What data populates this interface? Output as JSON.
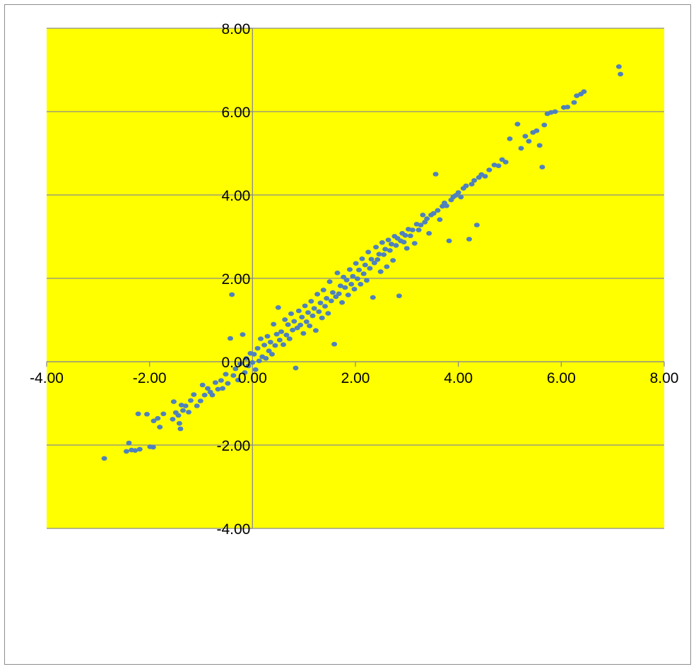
{
  "chart_data": {
    "type": "scatter",
    "title": "",
    "xlabel": "",
    "ylabel": "",
    "xlim": [
      -4,
      8
    ],
    "ylim": [
      -4,
      8
    ],
    "xticks": [
      -4,
      -2,
      0,
      2,
      4,
      6,
      8
    ],
    "yticks": [
      -4,
      -2,
      0,
      2,
      4,
      6,
      8
    ],
    "x_tick_labels": [
      "-4.00",
      "-2.00",
      "0.00",
      "2.00",
      "4.00",
      "6.00",
      "8.00"
    ],
    "y_tick_labels": [
      "-4.00",
      "-2.00",
      "0.00",
      "2.00",
      "4.00",
      "6.00",
      "8.00"
    ],
    "grid": "horizontal major gridlines",
    "plot_background": "#FFFF00",
    "gridline_color": "#8C8C8C",
    "axis_line_color": "#8C8C8C",
    "marker_color": "#4F81BD",
    "series": [
      {
        "points": [
          [
            -2.88,
            -2.32
          ],
          [
            -2.45,
            -2.15
          ],
          [
            -2.4,
            -1.95
          ],
          [
            -2.35,
            -2.12
          ],
          [
            -2.28,
            -2.13
          ],
          [
            -2.22,
            -1.25
          ],
          [
            -2.19,
            -2.1
          ],
          [
            -2.05,
            -1.26
          ],
          [
            -1.99,
            -2.04
          ],
          [
            -1.93,
            -2.05
          ],
          [
            -1.92,
            -1.42
          ],
          [
            -1.84,
            -1.36
          ],
          [
            -1.8,
            -1.57
          ],
          [
            -1.73,
            -1.25
          ],
          [
            -1.55,
            -1.38
          ],
          [
            -1.53,
            -0.96
          ],
          [
            -1.49,
            -1.22
          ],
          [
            -1.44,
            -1.29
          ],
          [
            -1.42,
            -1.48
          ],
          [
            -1.4,
            -1.61
          ],
          [
            -1.38,
            -1.04
          ],
          [
            -1.35,
            -1.17
          ],
          [
            -1.3,
            -1.06
          ],
          [
            -1.24,
            -1.21
          ],
          [
            -1.2,
            -0.93
          ],
          [
            -1.14,
            -0.79
          ],
          [
            -1.08,
            -1.06
          ],
          [
            -1.01,
            -0.94
          ],
          [
            -0.97,
            -0.56
          ],
          [
            -0.93,
            -0.8
          ],
          [
            -0.87,
            -0.64
          ],
          [
            -0.82,
            -0.73
          ],
          [
            -0.78,
            -0.8
          ],
          [
            -0.72,
            -0.5
          ],
          [
            -0.67,
            -0.66
          ],
          [
            -0.61,
            -0.45
          ],
          [
            -0.58,
            -0.64
          ],
          [
            -0.52,
            -0.3
          ],
          [
            -0.48,
            -0.52
          ],
          [
            -0.43,
            0.56
          ],
          [
            -0.4,
            1.61
          ],
          [
            -0.37,
            -0.33
          ],
          [
            -0.33,
            -0.17
          ],
          [
            -0.28,
            -0.44
          ],
          [
            -0.24,
            -0.05
          ],
          [
            -0.19,
            0.65
          ],
          [
            -0.15,
            -0.26
          ],
          [
            -0.12,
            0.08
          ],
          [
            -0.08,
            -0.1
          ],
          [
            -0.04,
            0.2
          ],
          [
            0.0,
            -0.02
          ],
          [
            0.03,
            0.18
          ],
          [
            0.06,
            -0.19
          ],
          [
            0.1,
            0.32
          ],
          [
            0.13,
            0.02
          ],
          [
            0.16,
            0.55
          ],
          [
            0.19,
            0.12
          ],
          [
            0.23,
            0.4
          ],
          [
            0.26,
            0.08
          ],
          [
            0.29,
            0.61
          ],
          [
            0.32,
            0.26
          ],
          [
            0.35,
            0.47
          ],
          [
            0.38,
            0.18
          ],
          [
            0.41,
            0.9
          ],
          [
            0.44,
            0.39
          ],
          [
            0.47,
            0.66
          ],
          [
            0.5,
            1.3
          ],
          [
            0.53,
            0.52
          ],
          [
            0.56,
            0.72
          ],
          [
            0.6,
            0.41
          ],
          [
            0.63,
            1.01
          ],
          [
            0.66,
            0.64
          ],
          [
            0.69,
            0.89
          ],
          [
            0.72,
            0.55
          ],
          [
            0.75,
            1.15
          ],
          [
            0.78,
            0.76
          ],
          [
            0.81,
            0.97
          ],
          [
            0.84,
            -0.15
          ],
          [
            0.87,
            0.81
          ],
          [
            0.9,
            1.22
          ],
          [
            0.93,
            0.88
          ],
          [
            0.96,
            1.07
          ],
          [
            0.99,
            0.68
          ],
          [
            1.02,
            1.34
          ],
          [
            1.05,
            0.96
          ],
          [
            1.08,
            1.18
          ],
          [
            1.11,
            0.86
          ],
          [
            1.14,
            1.45
          ],
          [
            1.17,
            1.1
          ],
          [
            1.2,
            1.28
          ],
          [
            1.23,
            0.75
          ],
          [
            1.26,
            1.62
          ],
          [
            1.29,
            1.2
          ],
          [
            1.32,
            1.41
          ],
          [
            1.35,
            1.05
          ],
          [
            1.38,
            1.72
          ],
          [
            1.41,
            1.33
          ],
          [
            1.44,
            1.52
          ],
          [
            1.47,
            1.16
          ],
          [
            1.5,
            1.92
          ],
          [
            1.53,
            1.46
          ],
          [
            1.56,
            1.66
          ],
          [
            1.59,
            0.42
          ],
          [
            1.62,
            1.56
          ],
          [
            1.65,
            2.13
          ],
          [
            1.68,
            1.63
          ],
          [
            1.71,
            1.82
          ],
          [
            1.74,
            1.42
          ],
          [
            1.77,
            2.03
          ],
          [
            1.8,
            1.78
          ],
          [
            1.83,
            1.96
          ],
          [
            1.86,
            1.6
          ],
          [
            1.89,
            2.21
          ],
          [
            1.92,
            1.86
          ],
          [
            1.95,
            2.05
          ],
          [
            1.98,
            1.74
          ],
          [
            2.01,
            2.36
          ],
          [
            2.04,
            1.99
          ],
          [
            2.07,
            2.2
          ],
          [
            2.1,
            1.86
          ],
          [
            2.13,
            2.47
          ],
          [
            2.16,
            2.11
          ],
          [
            2.19,
            2.32
          ],
          [
            2.22,
            1.95
          ],
          [
            2.25,
            2.63
          ],
          [
            2.28,
            2.24
          ],
          [
            2.31,
            2.46
          ],
          [
            2.34,
            1.54
          ],
          [
            2.37,
            2.37
          ],
          [
            2.4,
            2.75
          ],
          [
            2.43,
            2.45
          ],
          [
            2.46,
            2.58
          ],
          [
            2.49,
            2.16
          ],
          [
            2.52,
            2.86
          ],
          [
            2.55,
            2.57
          ],
          [
            2.58,
            2.7
          ],
          [
            2.61,
            2.28
          ],
          [
            2.64,
            2.92
          ],
          [
            2.67,
            2.67
          ],
          [
            2.7,
            2.82
          ],
          [
            2.73,
            2.43
          ],
          [
            2.76,
            3.01
          ],
          [
            2.79,
            2.79
          ],
          [
            2.82,
            2.96
          ],
          [
            2.85,
            1.58
          ],
          [
            2.88,
            2.9
          ],
          [
            2.91,
            3.08
          ],
          [
            2.94,
            2.87
          ],
          [
            2.97,
            3.03
          ],
          [
            3.0,
            2.72
          ],
          [
            3.03,
            3.18
          ],
          [
            3.07,
            3.02
          ],
          [
            3.11,
            3.16
          ],
          [
            3.15,
            2.84
          ],
          [
            3.19,
            3.3
          ],
          [
            3.23,
            3.16
          ],
          [
            3.27,
            3.28
          ],
          [
            3.31,
            3.52
          ],
          [
            3.35,
            3.35
          ],
          [
            3.39,
            3.43
          ],
          [
            3.43,
            3.08
          ],
          [
            3.47,
            3.52
          ],
          [
            3.52,
            3.56
          ],
          [
            3.56,
            4.5
          ],
          [
            3.6,
            3.63
          ],
          [
            3.64,
            3.41
          ],
          [
            3.69,
            3.73
          ],
          [
            3.73,
            3.81
          ],
          [
            3.77,
            3.74
          ],
          [
            3.82,
            2.9
          ],
          [
            3.86,
            3.88
          ],
          [
            3.9,
            3.95
          ],
          [
            3.95,
            3.99
          ],
          [
            4.0,
            4.06
          ],
          [
            4.05,
            3.95
          ],
          [
            4.1,
            4.16
          ],
          [
            4.15,
            4.22
          ],
          [
            4.21,
            2.94
          ],
          [
            4.26,
            4.26
          ],
          [
            4.31,
            4.35
          ],
          [
            4.36,
            3.28
          ],
          [
            4.4,
            4.42
          ],
          [
            4.45,
            4.49
          ],
          [
            4.52,
            4.45
          ],
          [
            4.6,
            4.6
          ],
          [
            4.7,
            4.72
          ],
          [
            4.78,
            4.7
          ],
          [
            4.85,
            4.85
          ],
          [
            4.92,
            4.79
          ],
          [
            5.0,
            5.35
          ],
          [
            5.15,
            5.7
          ],
          [
            5.22,
            5.12
          ],
          [
            5.3,
            5.41
          ],
          [
            5.37,
            5.29
          ],
          [
            5.45,
            5.5
          ],
          [
            5.52,
            5.54
          ],
          [
            5.58,
            5.19
          ],
          [
            5.63,
            4.67
          ],
          [
            5.67,
            5.68
          ],
          [
            5.73,
            5.95
          ],
          [
            5.8,
            5.98
          ],
          [
            5.88,
            6.0
          ],
          [
            6.05,
            6.1
          ],
          [
            6.12,
            6.11
          ],
          [
            6.25,
            6.22
          ],
          [
            6.3,
            6.38
          ],
          [
            6.38,
            6.42
          ],
          [
            6.44,
            6.48
          ],
          [
            7.12,
            7.08
          ],
          [
            7.15,
            6.9
          ]
        ]
      }
    ]
  }
}
